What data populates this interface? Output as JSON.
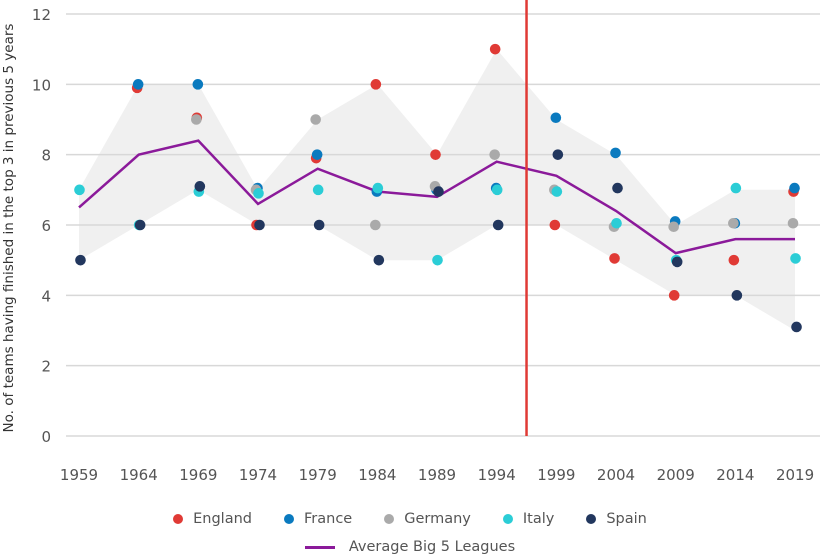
{
  "chart_data": {
    "type": "scatter",
    "title": "",
    "xlabel": "",
    "ylabel": "No. of teams having finished in the top 3 in previous 5 years",
    "ylim": [
      0,
      12
    ],
    "yticks": [
      "0",
      "2",
      "4",
      "6",
      "8",
      "10",
      "12"
    ],
    "ytick_values": [
      0,
      2,
      4,
      6,
      8,
      10,
      12
    ],
    "categories": [
      "1959",
      "1964",
      "1969",
      "1974",
      "1979",
      "1984",
      "1989",
      "1994",
      "1999",
      "2004",
      "2009",
      "2014",
      "2019"
    ],
    "grid": "horizontal",
    "vertical_marker": {
      "x": 1996.5,
      "color": "#e03a35"
    },
    "series": [
      {
        "name": "England",
        "color": "#e03a35",
        "values": [
          null,
          9.9,
          9.05,
          6,
          7.9,
          10,
          8,
          11,
          6,
          5.05,
          4,
          5,
          6.95
        ]
      },
      {
        "name": "France",
        "color": "#0a7abf",
        "values": [
          null,
          10,
          10,
          7.05,
          8,
          6.95,
          7,
          7.05,
          9.05,
          8.05,
          6.1,
          6.05,
          7.05
        ]
      },
      {
        "name": "Germany",
        "color": "#aaaaaa",
        "values": [
          null,
          null,
          9,
          7,
          9,
          6,
          7.1,
          8,
          7,
          5.95,
          5.95,
          6.05,
          6.05
        ]
      },
      {
        "name": "Italy",
        "color": "#2bcdd6",
        "values": [
          7,
          6,
          6.95,
          6.9,
          7,
          7.05,
          5,
          7,
          6.95,
          6.05,
          5,
          7.05,
          5.05
        ]
      },
      {
        "name": "Spain",
        "color": "#22375e",
        "values": [
          5,
          6,
          7.1,
          6,
          6,
          5,
          6.95,
          6,
          8,
          7.05,
          4.95,
          4,
          3.1
        ]
      }
    ],
    "average": {
      "name": "Average Big 5 Leagues",
      "color": "#8b1a9a",
      "values": [
        6.5,
        8,
        8.4,
        6.6,
        7.6,
        6.95,
        6.8,
        7.8,
        7.4,
        6.4,
        5.2,
        5.6,
        5.6
      ]
    },
    "range_band": {
      "color": "#f0f0f0",
      "min": [
        5,
        6,
        7,
        6,
        6,
        5,
        5,
        6,
        6,
        5,
        4,
        4,
        3
      ],
      "max": [
        7,
        10,
        10,
        7,
        9,
        10,
        8,
        11,
        9,
        8,
        6,
        7,
        7
      ]
    },
    "legend_position": "bottom"
  },
  "legend": {
    "items": [
      {
        "label": "England",
        "color": "#e03a35"
      },
      {
        "label": "France",
        "color": "#0a7abf"
      },
      {
        "label": "Germany",
        "color": "#aaaaaa"
      },
      {
        "label": "Italy",
        "color": "#2bcdd6"
      },
      {
        "label": "Spain",
        "color": "#22375e"
      }
    ],
    "line_label": "Average Big 5 Leagues",
    "line_color": "#8b1a9a"
  }
}
